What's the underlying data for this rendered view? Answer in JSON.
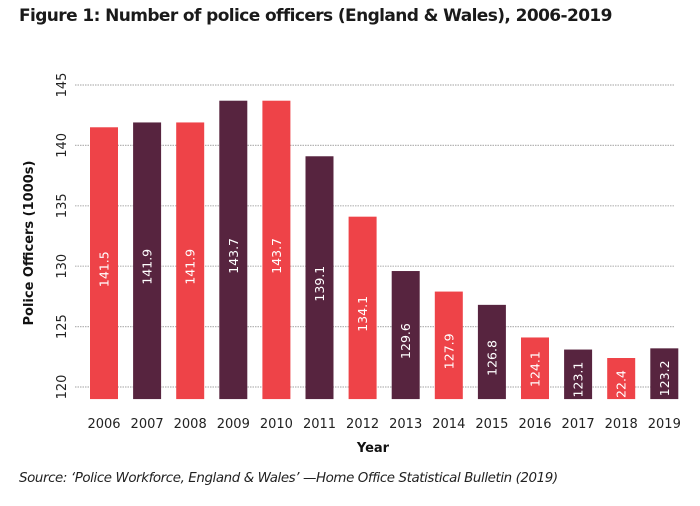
{
  "title": "Figure 1: Number of police officers (England & Wales), 2006-2019",
  "source": "Source: ‘Police Workforce, England & Wales’ —Home Office Statistical Bulletin (2019)",
  "colors": {
    "primary": "#EE4348",
    "secondary": "#57243F",
    "grid": "#b5b5b5"
  },
  "chart_data": {
    "type": "bar",
    "title": "Figure 1: Number of police officers (England & Wales), 2006-2019",
    "xlabel": "Year",
    "ylabel": "Police Officers (1000s)",
    "categories": [
      "2006",
      "2007",
      "2008",
      "2009",
      "2010",
      "2011",
      "2012",
      "2013",
      "2014",
      "2015",
      "2016",
      "2017",
      "2018",
      "2019"
    ],
    "values": [
      141.5,
      141.9,
      141.9,
      143.7,
      143.7,
      139.1,
      134.1,
      129.6,
      127.9,
      126.8,
      124.1,
      123.1,
      122.4,
      123.2
    ],
    "data_labels": [
      "141.5",
      "141.9",
      "141.9",
      "143.7",
      "143.7",
      "139.1",
      "134.1",
      "129.6",
      "127.9",
      "126.8",
      "124.1",
      "123.1",
      "122.4",
      "123.2"
    ],
    "bar_colors": [
      "#EE4348",
      "#57243F",
      "#EE4348",
      "#57243F",
      "#EE4348",
      "#57243F",
      "#EE4348",
      "#57243F",
      "#EE4348",
      "#57243F",
      "#EE4348",
      "#57243F",
      "#EE4348",
      "#57243F"
    ],
    "yticks": [
      120,
      125,
      130,
      135,
      140,
      145
    ],
    "ytick_labels": [
      "120",
      "125",
      "130",
      "135",
      "140",
      "145"
    ],
    "ylim": [
      119,
      145
    ],
    "grid": true,
    "grid_style": "dotted horizontal",
    "legend": "none"
  }
}
